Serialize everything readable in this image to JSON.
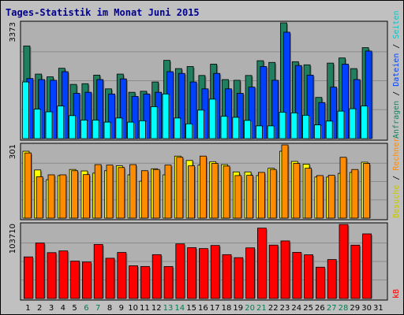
{
  "chart_data": {
    "title": "Tages-Statistik im Monat Juni 2015",
    "type": "bar",
    "days": [
      1,
      2,
      3,
      4,
      5,
      6,
      7,
      8,
      9,
      10,
      11,
      12,
      13,
      14,
      15,
      16,
      17,
      18,
      19,
      20,
      21,
      22,
      23,
      24,
      25,
      26,
      27,
      28,
      29,
      30,
      31
    ],
    "weekend_days": [
      6,
      7,
      13,
      14,
      20,
      21,
      27,
      28
    ],
    "panels": [
      {
        "name": "hits",
        "ymax_label": "3373",
        "ymax": 3373,
        "series": [
          {
            "legend": "Anfragen",
            "color": "#1f7f5f",
            "values": [
              2700,
              1880,
              1800,
              2050,
              1580,
              1600,
              1850,
              1450,
              1880,
              1350,
              1380,
              1650,
              2280,
              2040,
              2100,
              1840,
              2170,
              1720,
              1700,
              1840,
              2270,
              2220,
              3373,
              2240,
              2150,
              1200,
              2200,
              2350,
              2040,
              2650,
              0
            ]
          },
          {
            "legend": "Seiten",
            "color": "#0040ff",
            "values": [
              1750,
              1720,
              1700,
              1950,
              1320,
              1350,
              1720,
              1300,
              1740,
              1230,
              1300,
              1350,
              1950,
              1900,
              1650,
              1450,
              1900,
              1450,
              1320,
              1500,
              2100,
              1700,
              3100,
              2130,
              1850,
              1050,
              1500,
              2170,
              1720,
              2550,
              0
            ]
          },
          {
            "legend": "Dateien",
            "color": "#00ffff",
            "values": [
              1650,
              860,
              780,
              950,
              670,
              540,
              540,
              480,
              600,
              480,
              520,
              930,
              1300,
              600,
              430,
              830,
              1150,
              650,
              620,
              530,
              370,
              370,
              770,
              750,
              680,
              400,
              510,
              800,
              870,
              950,
              0
            ]
          }
        ]
      },
      {
        "name": "visits",
        "ymax_label": "301",
        "ymax": 301,
        "series": [
          {
            "legend": "Besuche",
            "color": "#ffff00",
            "values": [
              275,
              198,
              158,
              175,
              200,
              194,
              185,
              195,
              215,
              178,
              152,
              203,
              178,
              255,
              237,
              218,
              232,
              220,
              190,
              190,
              175,
              205,
              275,
              233,
              222,
              169,
              169,
              184,
              188,
              230,
              0
            ]
          },
          {
            "legend": "Rechner",
            "color": "#ff8c00",
            "values": [
              268,
              170,
              178,
              178,
              195,
              179,
              220,
              218,
              208,
              220,
              195,
              200,
              218,
              250,
              215,
              255,
              225,
              214,
              175,
              176,
              188,
              200,
              301,
              225,
              205,
              175,
              176,
              250,
              200,
              225,
              0
            ]
          }
        ]
      },
      {
        "name": "kbytes",
        "ymax_label": "103710",
        "ymax": 103710,
        "series": [
          {
            "legend": "kB",
            "color": "#ff0000",
            "values": [
              58240,
              77690,
              64210,
              66630,
              52320,
              51060,
              75720,
              56390,
              64470,
              45800,
              44830,
              61400,
              44790,
              76490,
              71200,
              69900,
              74280,
              61400,
              57180,
              70900,
              98550,
              74770,
              80630,
              64600,
              61220,
              43830,
              54510,
              103710,
              74700,
              90500,
              0
            ]
          }
        ]
      }
    ],
    "side_labels": [
      "Anfragen",
      "Dateien",
      "Seiten",
      "Besuche",
      "Rechner",
      "kB"
    ],
    "colors": {
      "background": "#c0c0c0",
      "panel": "#b0b0b0",
      "weekday": "#000000",
      "weekend": "#007f4f",
      "title": "#00008b"
    }
  }
}
